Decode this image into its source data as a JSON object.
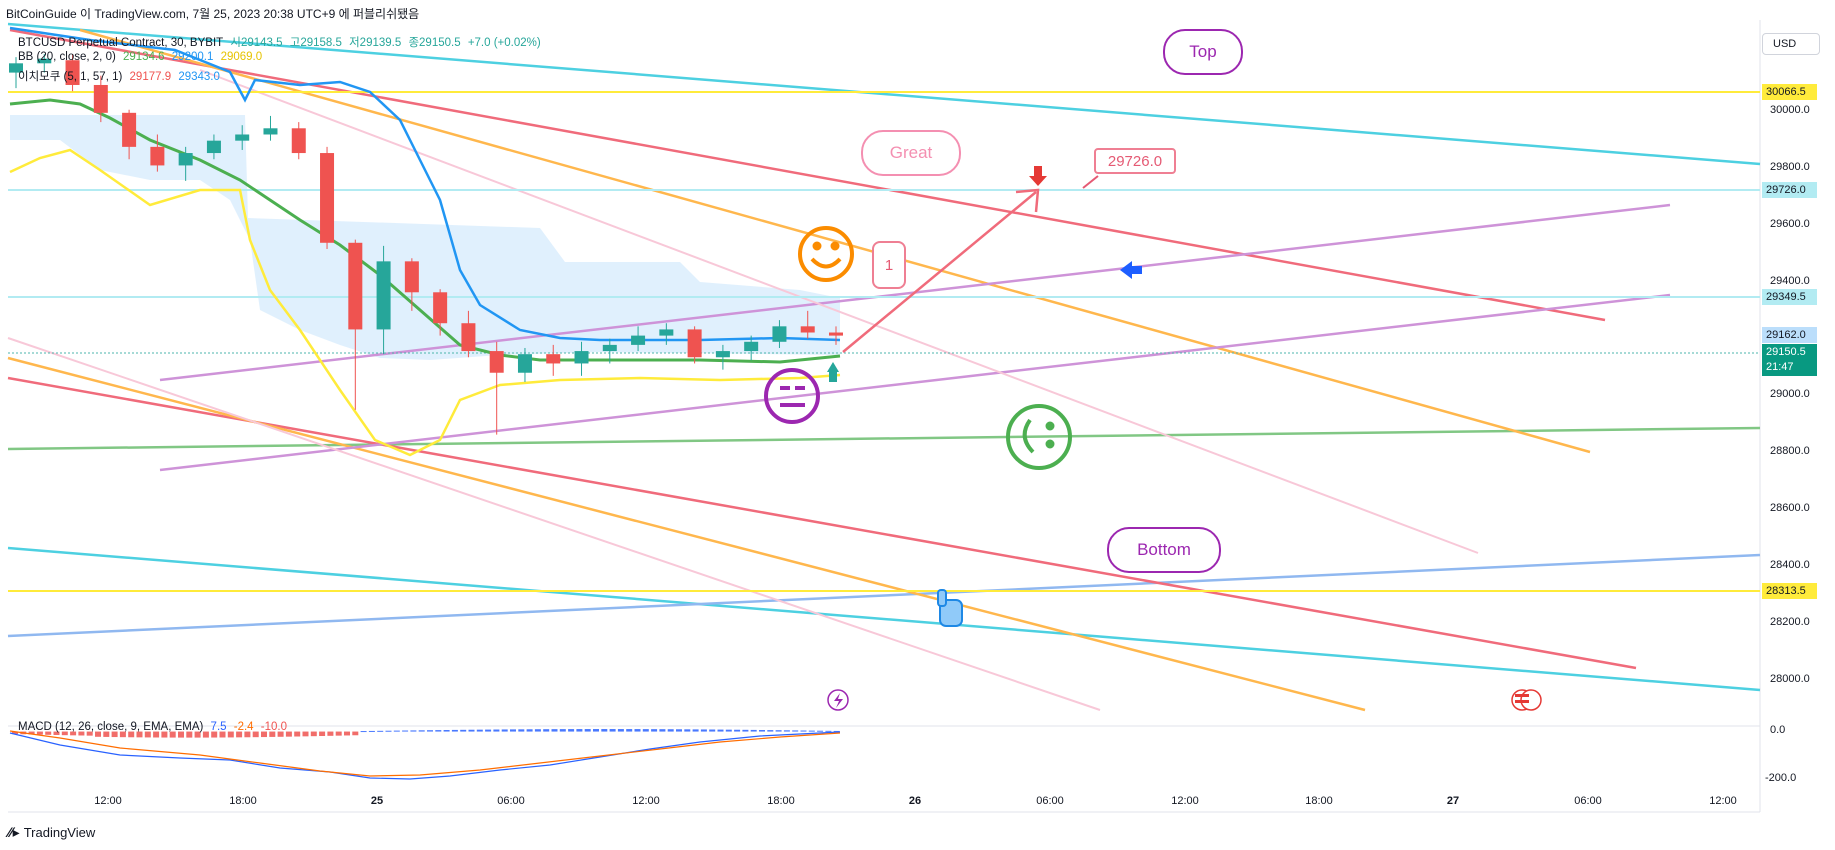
{
  "header": {
    "publish_line": "BitCoinGuide 이 TradingView.com, 7월 25, 2023 20:38 UTC+9 에 퍼블리쉬됐음"
  },
  "legend": {
    "symbol": "BTCUSD Perpetual Contract, 30, BYBIT",
    "open": "시29143.5",
    "high": "고29158.5",
    "low": "저29139.5",
    "close": "종29150.5",
    "change": "+7.0 (+0.02%)",
    "bb_label": "BB (20, close, 2, 0)",
    "bb_values": [
      "29134.6",
      "29200.1",
      "29069.0"
    ],
    "ichi_label": "이치모쿠 (5, 1, 57, 1)",
    "ichi_values": [
      "29177.9",
      "29343.0"
    ]
  },
  "currency_button": "USD",
  "price_axis": {
    "ticks": [
      "30000.0",
      "29800.0",
      "29600.0",
      "29400.0",
      "29000.0",
      "28800.0",
      "28600.0",
      "28400.0",
      "28200.0",
      "28000.0"
    ],
    "tags": {
      "t30066": "30066.5",
      "t29726": "29726.0",
      "t29349": "29349.5",
      "t29162": "29162.0",
      "current": "29150.5",
      "countdown": "21:47",
      "t28313": "28313.5"
    }
  },
  "macd_axis": {
    "ticks": [
      "0.0",
      "-200.0"
    ]
  },
  "macd_legend": {
    "label": "MACD (12, 26, close, 9, EMA, EMA)",
    "values": [
      "7.5",
      "-2.4",
      "-10.0"
    ]
  },
  "time_axis": [
    "12:00",
    "18:00",
    "25",
    "06:00",
    "12:00",
    "18:00",
    "26",
    "06:00",
    "12:00",
    "18:00",
    "27",
    "06:00",
    "12:00"
  ],
  "annotations": {
    "top": "Top",
    "great": "Great",
    "bottom": "Bottom",
    "target": "29726.0",
    "flag": "1"
  },
  "footer": {
    "brand": "TradingView"
  },
  "colors": {
    "up": "#26a69a",
    "down": "#ef5350",
    "cyan": "#4dd0e1",
    "red": "#f06b7b",
    "orange": "#ffa726",
    "yellow": "#ffeb3b",
    "purple": "#c58be0",
    "green": "#4caf50",
    "blue": "#2196f3",
    "pink": "#f8bbd0"
  },
  "chart_data": {
    "type": "candlestick",
    "symbol": "BTCUSD Perpetual Contract",
    "interval": "30",
    "exchange": "BYBIT",
    "ylim": [
      27940,
      30170
    ],
    "current_price": 29150.5,
    "horizontal_levels": [
      30066.5,
      29726.0,
      29349.5,
      29162.0,
      28313.5
    ],
    "target_price": 29726.0,
    "candles_ohlc_approx": [
      [
        30000,
        30050,
        29950,
        30030
      ],
      [
        30030,
        30060,
        30000,
        30045
      ],
      [
        30040,
        30060,
        29940,
        29960
      ],
      [
        29960,
        29990,
        29840,
        29870
      ],
      [
        29870,
        29880,
        29720,
        29760
      ],
      [
        29760,
        29800,
        29680,
        29700
      ],
      [
        29700,
        29760,
        29650,
        29740
      ],
      [
        29740,
        29800,
        29720,
        29780
      ],
      [
        29780,
        29830,
        29750,
        29800
      ],
      [
        29800,
        29860,
        29780,
        29820
      ],
      [
        29820,
        29840,
        29720,
        29740
      ],
      [
        29740,
        29760,
        29430,
        29450
      ],
      [
        29450,
        29460,
        28910,
        29170
      ],
      [
        29170,
        29440,
        29090,
        29390
      ],
      [
        29390,
        29400,
        29230,
        29290
      ],
      [
        29290,
        29300,
        29150,
        29190
      ],
      [
        29190,
        29230,
        29080,
        29100
      ],
      [
        29100,
        29130,
        28830,
        29030
      ],
      [
        29030,
        29110,
        29000,
        29090
      ],
      [
        29090,
        29120,
        29020,
        29060
      ],
      [
        29060,
        29130,
        29020,
        29100
      ],
      [
        29100,
        29140,
        29060,
        29120
      ],
      [
        29120,
        29180,
        29100,
        29150
      ],
      [
        29150,
        29190,
        29120,
        29170
      ],
      [
        29170,
        29180,
        29060,
        29080
      ],
      [
        29080,
        29120,
        29040,
        29100
      ],
      [
        29100,
        29150,
        29070,
        29130
      ],
      [
        29130,
        29200,
        29110,
        29180
      ],
      [
        29180,
        29230,
        29140,
        29160
      ],
      [
        29160,
        29180,
        29120,
        29150
      ]
    ],
    "macd": {
      "macd": 7.5,
      "signal": -2.4,
      "histogram": -10.0,
      "ylim": [
        -240,
        30
      ]
    }
  }
}
